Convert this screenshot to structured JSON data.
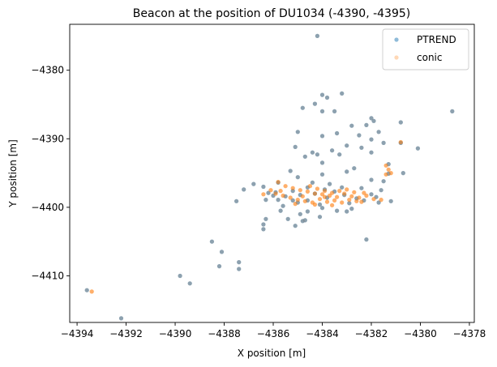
{
  "chart_data": {
    "type": "scatter",
    "title": "Beacon at the position of DU1034 (-4390, -4395)",
    "xlabel": "X position [m]",
    "ylabel": "Y position [m]",
    "xlim": [
      -4394.3,
      -4377.8
    ],
    "ylim": [
      -4416.8,
      -4373.3
    ],
    "xticks": [
      -4394,
      -4392,
      -4390,
      -4388,
      -4386,
      -4384,
      -4382,
      -4380,
      -4378
    ],
    "yticks": [
      -4410,
      -4400,
      -4390,
      -4380
    ],
    "grid": false,
    "legend_position": "top-right",
    "series": [
      {
        "name": "PTREND",
        "color": "#1f77b4",
        "points": [
          [
            -4384.2,
            -4375.0
          ],
          [
            -4384.0,
            -4383.6
          ],
          [
            -4383.8,
            -4384.0
          ],
          [
            -4384.3,
            -4384.9
          ],
          [
            -4384.8,
            -4385.5
          ],
          [
            -4384.0,
            -4386.0
          ],
          [
            -4383.5,
            -4386.0
          ],
          [
            -4383.2,
            -4383.4
          ],
          [
            -4382.0,
            -4387.0
          ],
          [
            -4381.9,
            -4387.4
          ],
          [
            -4382.2,
            -4388.0
          ],
          [
            -4381.7,
            -4389.0
          ],
          [
            -4380.8,
            -4387.6
          ],
          [
            -4378.7,
            -4386.0
          ],
          [
            -4385.0,
            -4389.0
          ],
          [
            -4384.0,
            -4389.6
          ],
          [
            -4383.4,
            -4389.2
          ],
          [
            -4382.8,
            -4388.1
          ],
          [
            -4382.5,
            -4389.5
          ],
          [
            -4382.0,
            -4390.1
          ],
          [
            -4381.5,
            -4390.6
          ],
          [
            -4380.8,
            -4390.6
          ],
          [
            -4380.1,
            -4391.4
          ],
          [
            -4383.0,
            -4391.0
          ],
          [
            -4383.6,
            -4391.7
          ],
          [
            -4384.4,
            -4392.0
          ],
          [
            -4384.2,
            -4392.3
          ],
          [
            -4385.1,
            -4391.2
          ],
          [
            -4384.7,
            -4392.6
          ],
          [
            -4384.0,
            -4393.5
          ],
          [
            -4383.3,
            -4392.3
          ],
          [
            -4382.4,
            -4391.3
          ],
          [
            -4382.0,
            -4392.0
          ],
          [
            -4382.7,
            -4394.3
          ],
          [
            -4381.3,
            -4393.7
          ],
          [
            -4381.3,
            -4395.1
          ],
          [
            -4380.7,
            -4395.0
          ],
          [
            -4381.5,
            -4396.2
          ],
          [
            -4382.0,
            -4396.0
          ],
          [
            -4383.0,
            -4394.8
          ],
          [
            -4384.0,
            -4395.2
          ],
          [
            -4385.0,
            -4395.6
          ],
          [
            -4385.3,
            -4394.7
          ],
          [
            -4385.8,
            -4396.4
          ],
          [
            -4386.4,
            -4397.0
          ],
          [
            -4386.8,
            -4396.6
          ],
          [
            -4387.2,
            -4397.4
          ],
          [
            -4387.5,
            -4399.1
          ],
          [
            -4386.3,
            -4398.9
          ],
          [
            -4386.0,
            -4398.3
          ],
          [
            -4385.6,
            -4399.8
          ],
          [
            -4385.0,
            -4399.3
          ],
          [
            -4384.6,
            -4400.6
          ],
          [
            -4384.0,
            -4400.1
          ],
          [
            -4383.4,
            -4400.5
          ],
          [
            -4382.8,
            -4400.2
          ],
          [
            -4382.3,
            -4399.0
          ],
          [
            -4381.7,
            -4399.3
          ],
          [
            -4381.2,
            -4399.1
          ],
          [
            -4381.6,
            -4397.5
          ],
          [
            -4382.4,
            -4397.2
          ],
          [
            -4383.2,
            -4397.1
          ],
          [
            -4383.9,
            -4397.4
          ],
          [
            -4384.6,
            -4397.1
          ],
          [
            -4385.2,
            -4397.6
          ],
          [
            -4385.9,
            -4397.8
          ],
          [
            -4384.9,
            -4401.0
          ],
          [
            -4384.1,
            -4401.4
          ],
          [
            -4384.7,
            -4401.9
          ],
          [
            -4385.4,
            -4401.7
          ],
          [
            -4385.7,
            -4400.5
          ],
          [
            -4386.3,
            -4401.7
          ],
          [
            -4386.4,
            -4402.5
          ],
          [
            -4386.4,
            -4403.2
          ],
          [
            -4385.1,
            -4402.7
          ],
          [
            -4384.8,
            -4402.0
          ],
          [
            -4383.0,
            -4400.6
          ],
          [
            -4382.2,
            -4404.7
          ],
          [
            -4388.5,
            -4405.0
          ],
          [
            -4388.1,
            -4406.5
          ],
          [
            -4388.2,
            -4408.6
          ],
          [
            -4387.4,
            -4408.0
          ],
          [
            -4387.4,
            -4409.0
          ],
          [
            -4389.8,
            -4410.0
          ],
          [
            -4389.4,
            -4411.1
          ],
          [
            -4393.6,
            -4412.1
          ],
          [
            -4392.2,
            -4416.2
          ],
          [
            -4384.3,
            -4398.0
          ],
          [
            -4383.8,
            -4398.6
          ],
          [
            -4384.6,
            -4399.0
          ],
          [
            -4383.1,
            -4398.2
          ],
          [
            -4382.6,
            -4398.7
          ],
          [
            -4385.5,
            -4398.4
          ],
          [
            -4384.9,
            -4398.2
          ],
          [
            -4383.5,
            -4397.7
          ],
          [
            -4382.9,
            -4399.4
          ],
          [
            -4384.1,
            -4399.6
          ],
          [
            -4385.2,
            -4399.0
          ],
          [
            -4385.8,
            -4398.9
          ],
          [
            -4386.2,
            -4397.9
          ],
          [
            -4382.0,
            -4398.1
          ],
          [
            -4381.8,
            -4398.5
          ],
          [
            -4384.4,
            -4396.4
          ],
          [
            -4383.7,
            -4396.6
          ]
        ]
      },
      {
        "name": "conic",
        "color": "#ff7f0e",
        "points": [
          [
            -4393.4,
            -4412.3
          ],
          [
            -4381.4,
            -4393.9
          ],
          [
            -4381.3,
            -4394.5
          ],
          [
            -4381.2,
            -4395.0
          ],
          [
            -4385.8,
            -4396.3
          ],
          [
            -4385.5,
            -4396.9
          ],
          [
            -4385.2,
            -4397.2
          ],
          [
            -4384.9,
            -4397.5
          ],
          [
            -4384.6,
            -4397.7
          ],
          [
            -4384.3,
            -4398.0
          ],
          [
            -4384.0,
            -4398.1
          ],
          [
            -4383.7,
            -4398.3
          ],
          [
            -4383.4,
            -4398.5
          ],
          [
            -4383.1,
            -4398.0
          ],
          [
            -4382.8,
            -4398.4
          ],
          [
            -4382.5,
            -4398.6
          ],
          [
            -4382.2,
            -4398.3
          ],
          [
            -4381.9,
            -4398.8
          ],
          [
            -4386.1,
            -4397.5
          ],
          [
            -4385.9,
            -4398.0
          ],
          [
            -4385.6,
            -4398.3
          ],
          [
            -4385.3,
            -4398.6
          ],
          [
            -4385.0,
            -4398.9
          ],
          [
            -4384.7,
            -4399.1
          ],
          [
            -4384.4,
            -4399.3
          ],
          [
            -4384.1,
            -4398.8
          ],
          [
            -4383.8,
            -4399.2
          ],
          [
            -4383.5,
            -4399.0
          ],
          [
            -4383.2,
            -4399.3
          ],
          [
            -4382.9,
            -4398.9
          ],
          [
            -4382.6,
            -4399.1
          ],
          [
            -4384.2,
            -4397.3
          ],
          [
            -4383.9,
            -4397.6
          ],
          [
            -4383.6,
            -4397.9
          ],
          [
            -4383.3,
            -4397.6
          ],
          [
            -4383.0,
            -4397.4
          ],
          [
            -4382.7,
            -4397.8
          ],
          [
            -4384.5,
            -4396.9
          ],
          [
            -4385.1,
            -4399.5
          ],
          [
            -4384.3,
            -4399.6
          ],
          [
            -4383.6,
            -4399.7
          ],
          [
            -4382.4,
            -4399.2
          ],
          [
            -4381.6,
            -4398.9
          ],
          [
            -4384.8,
            -4398.4
          ],
          [
            -4383.9,
            -4398.5
          ],
          [
            -4382.3,
            -4397.9
          ],
          [
            -4380.8,
            -4390.5
          ],
          [
            -4381.4,
            -4395.2
          ],
          [
            -4386.4,
            -4398.1
          ],
          [
            -4385.7,
            -4397.6
          ]
        ]
      }
    ],
    "overlap_color": "#8c8c8c"
  }
}
